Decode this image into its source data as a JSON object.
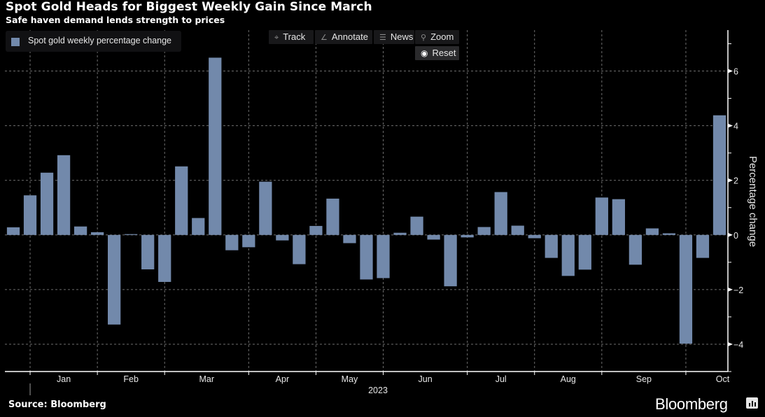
{
  "header": {
    "title": "Spot Gold Heads for Biggest Weekly Gain Since March",
    "subtitle": "Safe haven demand lends strength to prices"
  },
  "legend": {
    "label": "Spot gold weekly percentage change",
    "color": "#7289ab"
  },
  "toolbar": {
    "buttons": [
      {
        "label": "Track",
        "icon": "crosshair-icon"
      },
      {
        "label": "Annotate",
        "icon": "pencil-icon"
      },
      {
        "label": "News",
        "icon": "news-list-icon"
      },
      {
        "label": "Zoom",
        "icon": "magnifier-icon"
      }
    ],
    "reset": {
      "label": "Reset",
      "icon": "reset-dot-icon"
    }
  },
  "footer": {
    "source": "Source: Bloomberg",
    "brand": "Bloomberg"
  },
  "colors": {
    "bar": "#7289ab",
    "background": "#000000",
    "grid": "#6e6e6e",
    "axis": "#ffffff"
  },
  "chart_data": {
    "type": "bar",
    "title": "Spot Gold Heads for Biggest Weekly Gain Since March",
    "subtitle": "Safe haven demand lends strength to prices",
    "xlabel": "2023",
    "ylabel": "Percentage change",
    "ylim": [
      -5,
      7.5
    ],
    "yticks": [
      -4,
      -2,
      0,
      2,
      4,
      6
    ],
    "yminor_step": 1,
    "grid": true,
    "legend_position": "top-left",
    "months": [
      "Jan",
      "Feb",
      "Mar",
      "Apr",
      "May",
      "Jun",
      "Jul",
      "Aug",
      "Sep",
      "Oct"
    ],
    "month_start_week": [
      1.5,
      5.5,
      9.5,
      14.5,
      18.5,
      22.5,
      27.5,
      31.5,
      35.5,
      40.5
    ],
    "series": [
      {
        "name": "Spot gold weekly percentage change",
        "values": [
          0.28,
          1.45,
          2.28,
          2.92,
          0.31,
          0.1,
          -3.28,
          0.03,
          -1.26,
          -1.72,
          2.51,
          0.62,
          6.49,
          -0.56,
          -0.45,
          1.95,
          -0.2,
          -1.07,
          0.33,
          1.33,
          -0.3,
          -1.63,
          -1.58,
          0.08,
          0.67,
          -0.17,
          -1.88,
          -0.09,
          0.29,
          1.57,
          0.34,
          -0.12,
          -0.84,
          -1.5,
          -1.27,
          1.37,
          1.31,
          -1.09,
          0.24,
          0.06,
          -3.98,
          -0.84,
          4.38
        ]
      }
    ]
  }
}
